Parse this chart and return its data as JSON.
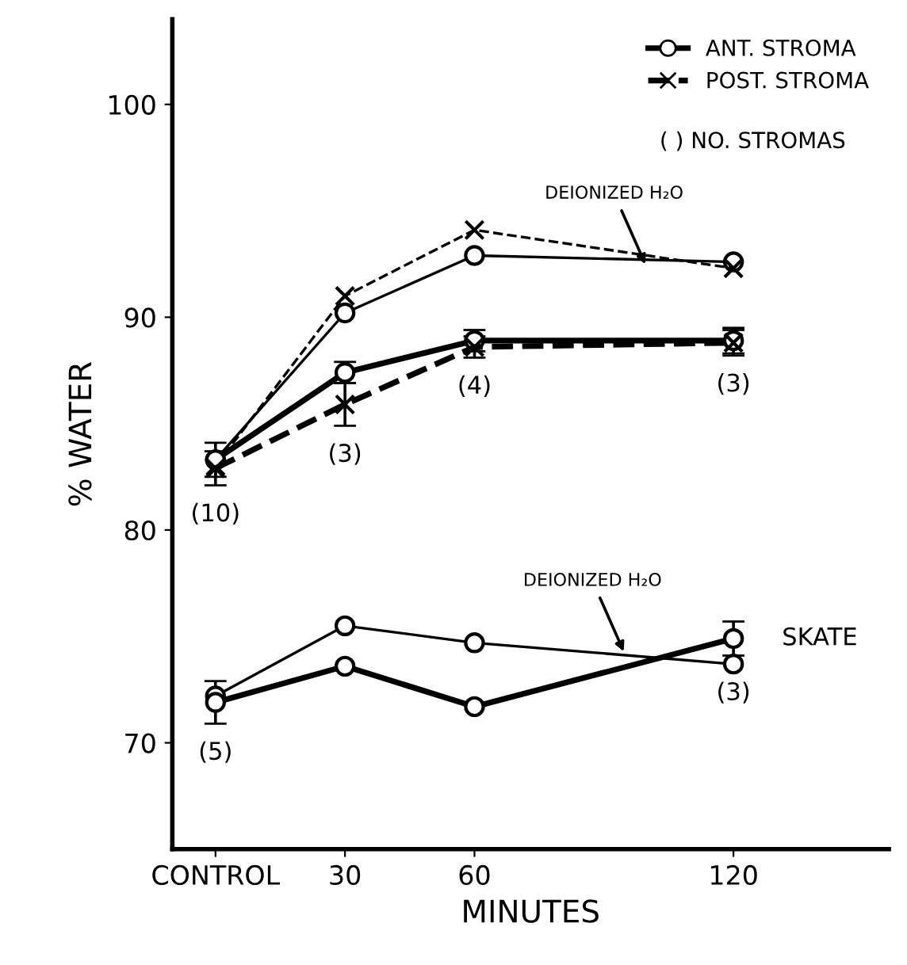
{
  "chart_data": {
    "type": "line",
    "xlabel": "MINUTES",
    "ylabel": "% WATER",
    "x": [
      0,
      30,
      60,
      120
    ],
    "xlim": [
      -10,
      156
    ],
    "xticks": [
      {
        "value": 0,
        "label": "CONTROL"
      },
      30,
      60,
      120
    ],
    "ylim": [
      65,
      104
    ],
    "yticks": [
      70,
      80,
      90,
      100
    ],
    "grid": false,
    "legend": "top right",
    "series": [
      {
        "color": "#000000",
        "marker": "circle",
        "line_style": "solid",
        "values": [
          83.3,
          90.2,
          92.9,
          92.6
        ]
      },
      {
        "color": "#000000",
        "marker": "cross",
        "line_style": "dashed",
        "values": [
          83.0,
          91.0,
          94.1,
          92.3
        ]
      },
      {
        "name": "ANT. STROMA",
        "color": "#000000",
        "marker": "circle",
        "line_style": "solid",
        "values": [
          83.3,
          87.4,
          88.9,
          88.9
        ],
        "errors": [
          0.8,
          0.5,
          0.5,
          0.6
        ]
      },
      {
        "name": "POST. STROMA",
        "color": "#000000",
        "marker": "cross",
        "line_style": "dashed",
        "values": [
          82.9,
          85.9,
          88.6,
          88.8
        ],
        "errors": [
          0.8,
          1.0,
          0.5,
          0.6
        ]
      },
      {
        "color": "#000000",
        "marker": "circle",
        "line_style": "solid",
        "values": [
          72.2,
          75.5,
          74.7,
          73.7
        ]
      },
      {
        "color": "#000000",
        "marker": "circle",
        "line_style": "solid",
        "values": [
          71.9,
          73.6,
          71.7,
          74.9
        ],
        "errors": [
          1.0,
          null,
          null,
          0.8
        ]
      }
    ],
    "annotations": [
      "( ) NO. STROMAS",
      {
        "text": "(10)",
        "x": 0,
        "y": 82.1
      },
      {
        "text": "(3)",
        "x": 30,
        "y": 84.9
      },
      {
        "text": "(4)",
        "x": 60,
        "y": 88.1
      },
      {
        "text": "(3)",
        "x": 120,
        "y": 88.2
      },
      {
        "text": "(5)",
        "x": 0,
        "y": 70.9
      },
      {
        "text": "(3)",
        "x": 120,
        "y": 73.7
      },
      {
        "text": "DEIONIZED H₂O",
        "x": 100,
        "y": 92.3
      },
      {
        "text": "DEIONIZED H₂O",
        "x": 95,
        "y": 74.1
      },
      {
        "text": "SKATE",
        "x": 120,
        "y": 74.9
      }
    ]
  }
}
